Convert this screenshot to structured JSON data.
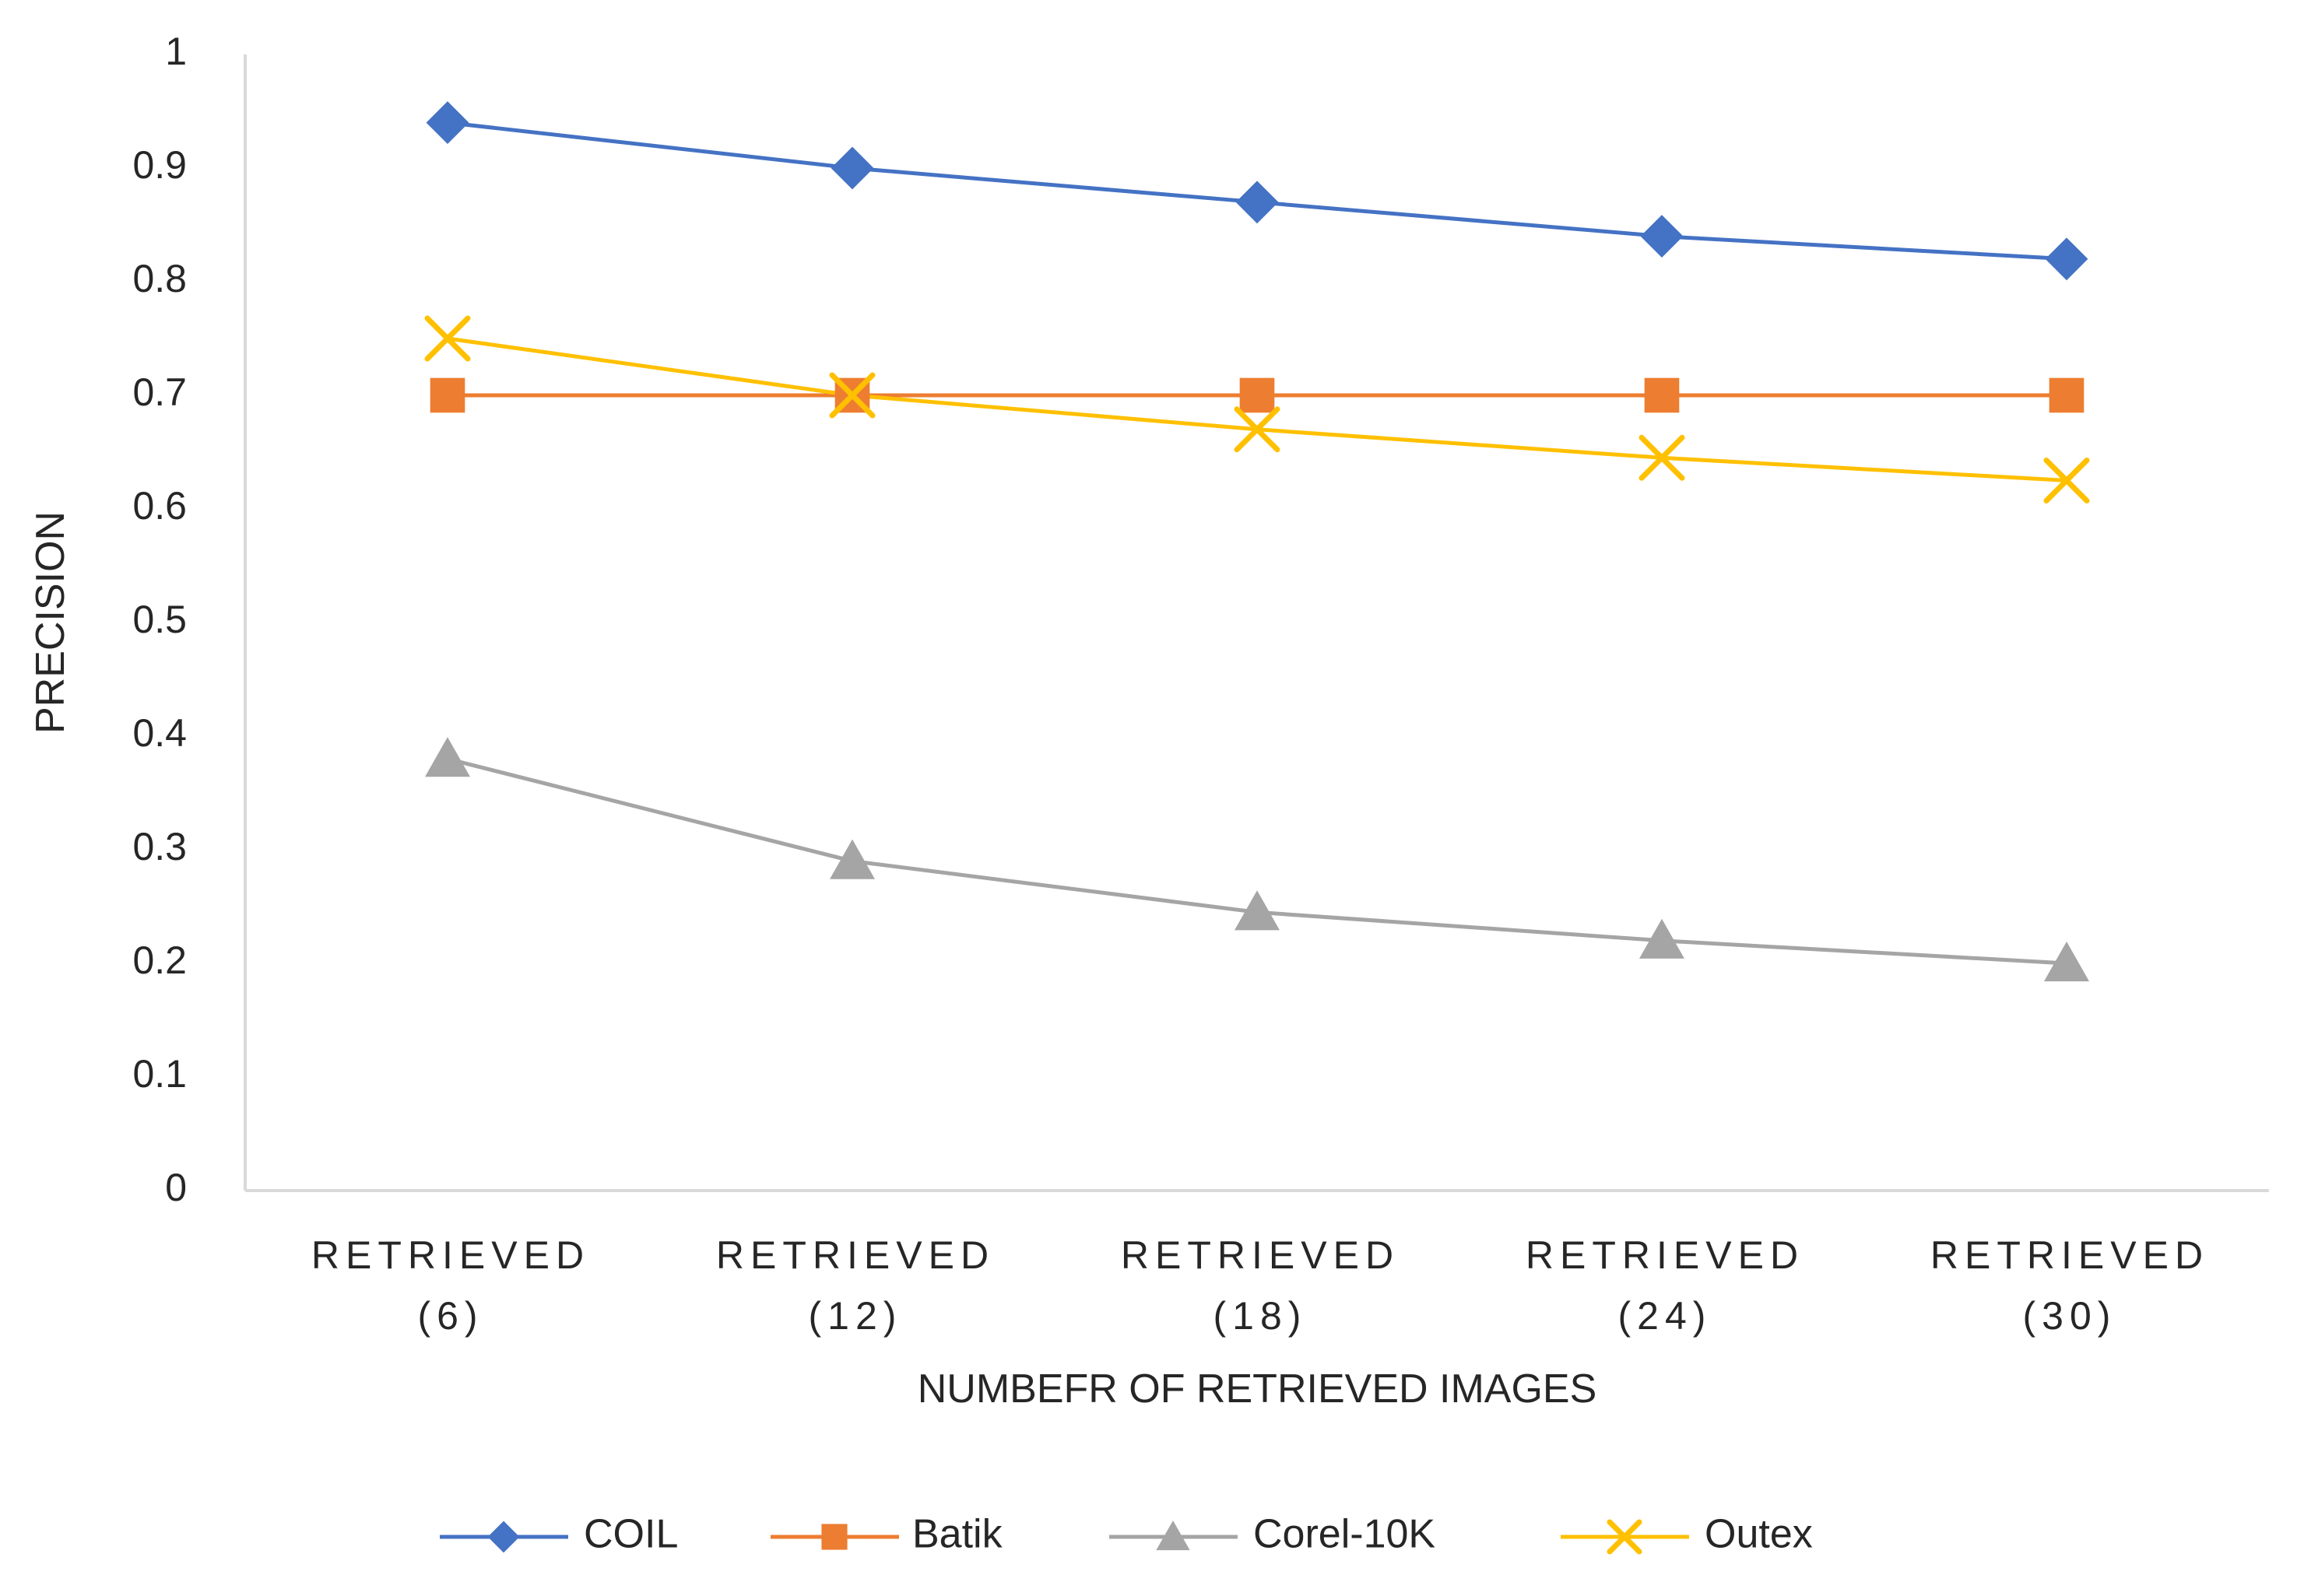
{
  "chart_data": {
    "type": "line",
    "title": "",
    "xlabel": "NUMBEFR OF RETRIEVED IMAGES",
    "ylabel": "PRECISION",
    "categories": [
      [
        "RETRIEVED",
        "(6)"
      ],
      [
        "RETRIEVED",
        "(12)"
      ],
      [
        "RETRIEVED",
        "(18)"
      ],
      [
        "RETRIEVED",
        "(24)"
      ],
      [
        "RETRIEVED",
        "(30)"
      ]
    ],
    "yticks": [
      "0",
      "0.1",
      "0.2",
      "0.3",
      "0.4",
      "0.5",
      "0.6",
      "0.7",
      "0.8",
      "0.9",
      "1"
    ],
    "ylim": [
      0,
      1
    ],
    "grid": false,
    "legend_position": "bottom",
    "series": [
      {
        "name": "COIL",
        "values": [
          0.94,
          0.9,
          0.87,
          0.84,
          0.82
        ],
        "color": "#4472C4",
        "marker": "diamond"
      },
      {
        "name": "Batik",
        "values": [
          0.7,
          0.7,
          0.7,
          0.7,
          0.7
        ],
        "color": "#ED7D31",
        "marker": "square"
      },
      {
        "name": "Corel-10K",
        "values": [
          0.38,
          0.29,
          0.245,
          0.22,
          0.2
        ],
        "color": "#A5A5A5",
        "marker": "triangle"
      },
      {
        "name": "Outex",
        "values": [
          0.75,
          0.7,
          0.67,
          0.645,
          0.625
        ],
        "color": "#FFC000",
        "marker": "x"
      }
    ]
  }
}
